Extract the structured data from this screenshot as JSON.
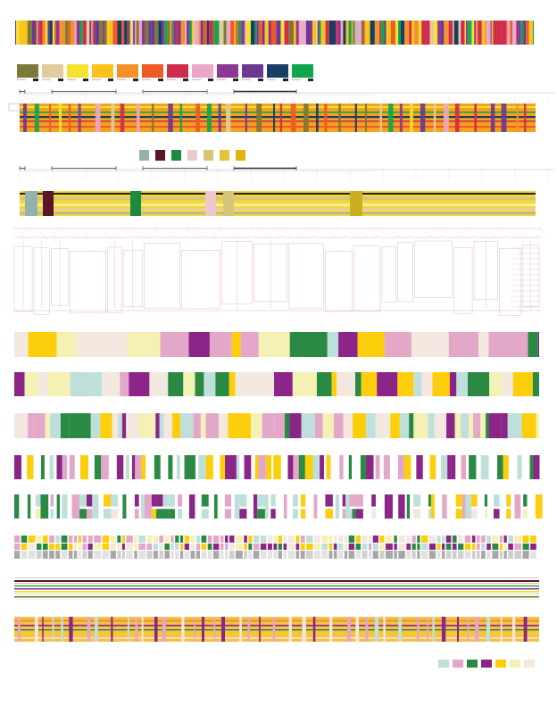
{
  "palette_a": [
    {
      "name": "olive",
      "color": "#7d7a35"
    },
    {
      "name": "sand",
      "color": "#e0cc9c"
    },
    {
      "name": "lemon",
      "color": "#f6e22e"
    },
    {
      "name": "gold",
      "color": "#fbc31a"
    },
    {
      "name": "orange",
      "color": "#f4912b"
    },
    {
      "name": "vermilion",
      "color": "#ee5a28"
    },
    {
      "name": "crimson",
      "color": "#cf2d4e"
    },
    {
      "name": "pink",
      "color": "#e9a8c8"
    },
    {
      "name": "plum",
      "color": "#8e3795"
    },
    {
      "name": "violet",
      "color": "#6b3994"
    },
    {
      "name": "navy",
      "color": "#183e63"
    },
    {
      "name": "green",
      "color": "#12a54d"
    }
  ],
  "palette_b": [
    {
      "name": "sage",
      "color": "#93b2ab"
    },
    {
      "name": "maroon",
      "color": "#5a1526"
    },
    {
      "name": "forest",
      "color": "#1f8a3f"
    },
    {
      "name": "blush",
      "color": "#ecc9cf"
    },
    {
      "name": "khaki",
      "color": "#d6c47a"
    },
    {
      "name": "mustard",
      "color": "#e4c23a"
    },
    {
      "name": "amber",
      "color": "#e2b20c"
    }
  ],
  "palette_c": [
    {
      "name": "mint",
      "color": "#bfe0da"
    },
    {
      "name": "rose",
      "color": "#e3a8c8"
    },
    {
      "name": "emerald",
      "color": "#2a8a43"
    },
    {
      "name": "purple",
      "color": "#8b2588"
    },
    {
      "name": "yellow",
      "color": "#fcce0b"
    },
    {
      "name": "cream",
      "color": "#f5f0b4"
    },
    {
      "name": "linen",
      "color": "#f2e8df"
    }
  ]
}
